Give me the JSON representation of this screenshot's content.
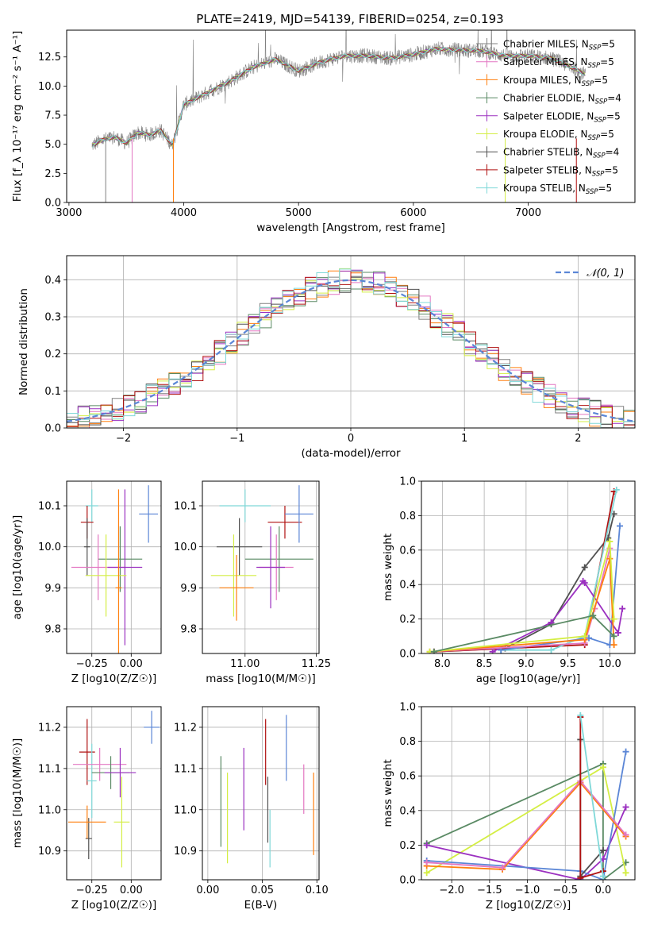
{
  "figure": {
    "title": "PLATE=2419, MJD=54139, FIBERID=0254, z=0.193"
  },
  "chart_data": [
    {
      "id": "spectrum",
      "type": "line",
      "title": "PLATE=2419, MJD=54139, FIBERID=0254, z=0.193",
      "xlabel": "wavelength [Angstrom, rest frame]",
      "ylabel": "Flux [f_λ 10⁻¹⁷ erg cm⁻² s⁻¹ A⁻¹]",
      "xlim": [
        2980,
        7930
      ],
      "ylim": [
        0,
        14.8
      ],
      "xticks": [
        3000,
        4000,
        5000,
        6000,
        7000
      ],
      "yticks": [
        0.0,
        2.5,
        5.0,
        7.5,
        10.0,
        12.5
      ],
      "legend_position": "right",
      "data_line_color": "#808080",
      "continuum_x": [
        3200,
        3300,
        3400,
        3500,
        3600,
        3700,
        3800,
        3900,
        4000,
        4200,
        4400,
        4600,
        4800,
        5000,
        5200,
        5400,
        5600,
        5800,
        6000,
        6200,
        6400,
        6600,
        6800,
        7000,
        7200,
        7400,
        7500
      ],
      "continuum_y": [
        4.9,
        5.4,
        5.6,
        5.1,
        6.0,
        5.8,
        6.2,
        4.9,
        8.4,
        9.4,
        10.4,
        11.6,
        12.3,
        11.3,
        12.1,
        12.6,
        12.6,
        12.4,
        12.7,
        13.2,
        13.1,
        13.0,
        12.6,
        12.6,
        12.4,
        11.5,
        11.0
      ],
      "series": [
        {
          "name": "Chabrier MILES, N_SSP=5",
          "label": "Chabrier MILES, N",
          "sub": "SSP",
          "suffix": "=5",
          "color": "#808080",
          "marker": "+"
        },
        {
          "name": "Salpeter MILES, N_SSP=5",
          "label": "Salpeter MILES, N",
          "sub": "SSP",
          "suffix": "=5",
          "color": "#e377c2",
          "marker": "+"
        },
        {
          "name": "Kroupa MILES, N_SSP=5",
          "label": "Kroupa MILES, N",
          "sub": "SSP",
          "suffix": "=5",
          "color": "#ff7f0e",
          "marker": "+"
        },
        {
          "name": "Chabrier ELODIE, N_SSP=4",
          "label": "Chabrier ELODIE, N",
          "sub": "SSP",
          "suffix": "=4",
          "color": "#5a8a64",
          "marker": "+"
        },
        {
          "name": "Salpeter ELODIE, N_SSP=5",
          "label": "Salpeter ELODIE, N",
          "sub": "SSP",
          "suffix": "=5",
          "color": "#9b30c0",
          "marker": "+"
        },
        {
          "name": "Kroupa ELODIE, N_SSP=5",
          "label": "Kroupa ELODIE, N",
          "sub": "SSP",
          "suffix": "=5",
          "color": "#d4ee44",
          "marker": "+"
        },
        {
          "name": "Chabrier STELIB, N_SSP=4",
          "label": "Chabrier STELIB, N",
          "sub": "SSP",
          "suffix": "=4",
          "color": "#505050",
          "marker": "+"
        },
        {
          "name": "Salpeter STELIB, N_SSP=5",
          "label": "Salpeter STELIB, N",
          "sub": "SSP",
          "suffix": "=5",
          "color": "#b01010",
          "marker": "+"
        },
        {
          "name": "Kroupa STELIB, N_SSP=5",
          "label": "Kroupa STELIB, N",
          "sub": "SSP",
          "suffix": "=5",
          "color": "#7fd8d8",
          "marker": "+"
        }
      ]
    },
    {
      "id": "normed",
      "type": "line",
      "xlabel": "(data-model)/error",
      "ylabel": "Normed distribution",
      "xlim": [
        -2.5,
        2.5
      ],
      "ylim": [
        0,
        0.465
      ],
      "xticks": [
        -2,
        -1,
        0,
        1,
        2
      ],
      "yticks": [
        0.0,
        0.1,
        0.2,
        0.3,
        0.4
      ],
      "grid": true,
      "legend": {
        "label": "𝒩(0, 1)",
        "color": "#5b86d6",
        "style": "dashed",
        "position": "top-right"
      },
      "gaussian": {
        "mean": 0,
        "sigma": 1
      },
      "hist_bin_width": 0.1
    },
    {
      "id": "age_vs_Z",
      "type": "scatter",
      "xlabel": "Z [log10(Z/Z☉)]",
      "ylabel": "age  [log10(age/yr)]",
      "xlim": [
        -0.41,
        0.19
      ],
      "ylim": [
        9.74,
        10.16
      ],
      "xticks": [
        -0.25,
        0.0
      ],
      "yticks": [
        9.8,
        9.9,
        10.0,
        10.1
      ],
      "grid": true,
      "points": [
        {
          "x": -0.25,
          "y": 10.1,
          "ex": 0.04,
          "ey": 0.04,
          "color": "#7fd8d8"
        },
        {
          "x": -0.28,
          "y": 10.06,
          "ex": 0.04,
          "ey": 0.04,
          "color": "#b01010"
        },
        {
          "x": -0.28,
          "y": 10.0,
          "ex": 0.02,
          "ey": 0.07,
          "color": "#505050"
        },
        {
          "x": 0.11,
          "y": 10.08,
          "ex": 0.06,
          "ey": 0.07,
          "color": "#5b86d6"
        },
        {
          "x": -0.07,
          "y": 9.97,
          "ex": 0.14,
          "ey": 0.08,
          "color": "#5a8a64"
        },
        {
          "x": -0.21,
          "y": 9.95,
          "ex": 0.17,
          "ey": 0.08,
          "color": "#e377c2"
        },
        {
          "x": -0.04,
          "y": 9.95,
          "ex": 0.11,
          "ey": 0.19,
          "color": "#9b30c0"
        },
        {
          "x": -0.16,
          "y": 9.93,
          "ex": 0.13,
          "ey": 0.1,
          "color": "#d4ee44"
        },
        {
          "x": -0.08,
          "y": 9.9,
          "ex": 0.02,
          "ey": 0.24,
          "color": "#ff7f0e"
        }
      ]
    },
    {
      "id": "age_vs_mass",
      "type": "scatter",
      "xlabel": "mass [log10(M/M☉)]",
      "ylabel": "",
      "xlim": [
        10.85,
        11.26
      ],
      "ylim": [
        9.74,
        10.16
      ],
      "xticks": [
        11.0,
        11.25
      ],
      "yticks": [
        9.8,
        9.9,
        10.0,
        10.1
      ],
      "grid": true,
      "points": [
        {
          "x": 11.0,
          "y": 10.1,
          "ex": 0.09,
          "ey": 0.04,
          "color": "#7fd8d8"
        },
        {
          "x": 11.14,
          "y": 10.06,
          "ex": 0.06,
          "ey": 0.04,
          "color": "#b01010"
        },
        {
          "x": 10.98,
          "y": 10.0,
          "ex": 0.08,
          "ey": 0.07,
          "color": "#505050"
        },
        {
          "x": 11.19,
          "y": 10.08,
          "ex": 0.05,
          "ey": 0.07,
          "color": "#5b86d6"
        },
        {
          "x": 11.12,
          "y": 9.97,
          "ex": 0.12,
          "ey": 0.08,
          "color": "#5a8a64"
        },
        {
          "x": 11.11,
          "y": 9.95,
          "ex": 0.06,
          "ey": 0.08,
          "color": "#e377c2"
        },
        {
          "x": 11.09,
          "y": 9.95,
          "ex": 0.05,
          "ey": 0.1,
          "color": "#9b30c0"
        },
        {
          "x": 10.96,
          "y": 9.93,
          "ex": 0.08,
          "ey": 0.1,
          "color": "#d4ee44"
        },
        {
          "x": 10.97,
          "y": 9.9,
          "ex": 0.06,
          "ey": 0.08,
          "color": "#ff7f0e"
        }
      ]
    },
    {
      "id": "weight_vs_age",
      "type": "line",
      "xlabel": "age  [log10(age/yr)]",
      "ylabel": "mass weight",
      "xlim": [
        7.75,
        10.3
      ],
      "ylim": [
        0,
        1.0
      ],
      "xticks": [
        8.0,
        8.5,
        9.0,
        9.5,
        10.0
      ],
      "yticks": [
        0.0,
        0.2,
        0.4,
        0.6,
        0.8,
        1.0
      ],
      "grid": true,
      "series": [
        {
          "color": "#505050",
          "x": [
            7.9,
            8.75,
            9.3,
            9.7,
            9.98,
            10.05
          ],
          "y": [
            0.01,
            0.03,
            0.17,
            0.5,
            0.67,
            0.81
          ]
        },
        {
          "color": "#b01010",
          "x": [
            7.9,
            9.7,
            10.05
          ],
          "y": [
            0.01,
            0.05,
            0.94
          ]
        },
        {
          "color": "#7fd8d8",
          "x": [
            8.7,
            9.3,
            9.7,
            10.08
          ],
          "y": [
            0.02,
            0.02,
            0.1,
            0.95
          ]
        },
        {
          "color": "#5b86d6",
          "x": [
            8.7,
            9.75,
            10.0,
            10.12
          ],
          "y": [
            0.02,
            0.09,
            0.05,
            0.74
          ]
        },
        {
          "color": "#9b30c0",
          "x": [
            8.6,
            9.3,
            9.68,
            9.7,
            10.1,
            10.15
          ],
          "y": [
            0.01,
            0.18,
            0.42,
            0.41,
            0.12,
            0.26
          ]
        },
        {
          "color": "#e377c2",
          "x": [
            7.85,
            9.7,
            9.82,
            10.0
          ],
          "y": [
            0.01,
            0.06,
            0.26,
            0.61
          ]
        },
        {
          "color": "#ff7f0e",
          "x": [
            7.85,
            9.7,
            10.0,
            10.05
          ],
          "y": [
            0.01,
            0.08,
            0.55,
            0.05
          ]
        },
        {
          "color": "#d4ee44",
          "x": [
            7.85,
            9.7,
            10.0,
            10.05
          ],
          "y": [
            0.01,
            0.1,
            0.65,
            0.2
          ]
        },
        {
          "color": "#5a8a64",
          "x": [
            7.9,
            9.8,
            10.05
          ],
          "y": [
            0.01,
            0.22,
            0.1
          ]
        }
      ]
    },
    {
      "id": "mass_vs_Z",
      "type": "scatter",
      "xlabel": "Z [log10(Z/Z☉)]",
      "ylabel": "mass [log10(M/M☉)]",
      "xlim": [
        -0.41,
        0.19
      ],
      "ylim": [
        10.83,
        11.25
      ],
      "xticks": [
        -0.25,
        0.0
      ],
      "yticks": [
        10.9,
        11.0,
        11.1,
        11.2
      ],
      "grid": true,
      "points": [
        {
          "x": -0.28,
          "y": 11.14,
          "ex": 0.05,
          "ey": 0.08,
          "color": "#b01010"
        },
        {
          "x": 0.13,
          "y": 11.2,
          "ex": 0.05,
          "ey": 0.04,
          "color": "#5b86d6"
        },
        {
          "x": -0.25,
          "y": 11.07,
          "ex": 0.03,
          "ey": 0.09,
          "color": "#7fd8d8"
        },
        {
          "x": -0.27,
          "y": 10.93,
          "ex": 0.02,
          "ey": 0.05,
          "color": "#505050"
        },
        {
          "x": -0.2,
          "y": 11.11,
          "ex": 0.17,
          "ey": 0.04,
          "color": "#e377c2"
        },
        {
          "x": -0.13,
          "y": 11.09,
          "ex": 0.12,
          "ey": 0.04,
          "color": "#5a8a64"
        },
        {
          "x": -0.07,
          "y": 11.09,
          "ex": 0.1,
          "ey": 0.06,
          "color": "#9b30c0"
        },
        {
          "x": -0.06,
          "y": 10.97,
          "ex": 0.05,
          "ey": 0.11,
          "color": "#d4ee44"
        },
        {
          "x": -0.28,
          "y": 10.97,
          "ex": 0.12,
          "ey": 0.04,
          "color": "#ff7f0e"
        }
      ]
    },
    {
      "id": "mass_vs_ebv",
      "type": "scatter",
      "xlabel": "E(B-V)",
      "ylabel": "",
      "xlim": [
        -0.005,
        0.102
      ],
      "ylim": [
        10.83,
        11.25
      ],
      "xticks": [
        0.0,
        0.05,
        0.1
      ],
      "yticks": [
        10.9,
        11.0,
        11.1,
        11.2
      ],
      "grid": true,
      "points": [
        {
          "x": 0.012,
          "y": 11.02,
          "ex": 0,
          "ey": 0.11,
          "color": "#5a8a64"
        },
        {
          "x": 0.018,
          "y": 10.98,
          "ex": 0,
          "ey": 0.11,
          "color": "#d4ee44"
        },
        {
          "x": 0.033,
          "y": 11.05,
          "ex": 0,
          "ey": 0.1,
          "color": "#9b30c0"
        },
        {
          "x": 0.053,
          "y": 11.14,
          "ex": 0,
          "ey": 0.08,
          "color": "#b01010"
        },
        {
          "x": 0.055,
          "y": 11.0,
          "ex": 0,
          "ey": 0.08,
          "color": "#505050"
        },
        {
          "x": 0.057,
          "y": 10.93,
          "ex": 0,
          "ey": 0.07,
          "color": "#7fd8d8"
        },
        {
          "x": 0.072,
          "y": 11.15,
          "ex": 0,
          "ey": 0.08,
          "color": "#5b86d6"
        },
        {
          "x": 0.088,
          "y": 11.05,
          "ex": 0,
          "ey": 0.06,
          "color": "#e377c2"
        },
        {
          "x": 0.097,
          "y": 10.99,
          "ex": 0,
          "ey": 0.1,
          "color": "#ff7f0e"
        }
      ]
    },
    {
      "id": "weight_vs_Z",
      "type": "line",
      "xlabel": "Z [log10(Z/Z☉)]",
      "ylabel": "mass weight",
      "xlim": [
        -2.4,
        0.42
      ],
      "ylim": [
        0,
        1.0
      ],
      "xticks": [
        -2.0,
        -1.5,
        -1.0,
        -0.5,
        0.0
      ],
      "yticks": [
        0.0,
        0.2,
        0.4,
        0.6,
        0.8,
        1.0
      ],
      "grid": true,
      "series": [
        {
          "color": "#5a8a64",
          "x": [
            -2.33,
            0.0,
            0.0,
            0.0,
            0.3
          ],
          "y": [
            0.21,
            0.67,
            0.12,
            0.0,
            0.1
          ]
        },
        {
          "color": "#d4ee44",
          "x": [
            -2.33,
            0.0,
            0.3,
            0.3
          ],
          "y": [
            0.04,
            0.65,
            0.04,
            0.04
          ]
        },
        {
          "color": "#9b30c0",
          "x": [
            -2.33,
            -0.3,
            0.0,
            0.3
          ],
          "y": [
            0.2,
            0.0,
            0.12,
            0.42
          ]
        },
        {
          "color": "#5b86d6",
          "x": [
            -2.33,
            -0.3,
            0.0,
            0.3
          ],
          "y": [
            0.11,
            0.05,
            0.0,
            0.74
          ]
        },
        {
          "color": "#ff7f0e",
          "x": [
            -2.33,
            -1.33,
            -0.3,
            0.3
          ],
          "y": [
            0.08,
            0.06,
            0.56,
            0.25
          ]
        },
        {
          "color": "#e377c2",
          "x": [
            -2.33,
            -1.33,
            -0.3,
            0.3
          ],
          "y": [
            0.1,
            0.07,
            0.57,
            0.26
          ]
        },
        {
          "color": "#505050",
          "x": [
            -0.3,
            -0.3,
            0.0
          ],
          "y": [
            0.81,
            0.02,
            0.17
          ]
        },
        {
          "color": "#b01010",
          "x": [
            -0.3,
            -0.3,
            0.0
          ],
          "y": [
            0.94,
            0.01,
            0.05
          ]
        },
        {
          "color": "#7fd8d8",
          "x": [
            -0.3,
            0.0,
            0.0
          ],
          "y": [
            0.95,
            0.02,
            0.02
          ]
        }
      ]
    }
  ]
}
